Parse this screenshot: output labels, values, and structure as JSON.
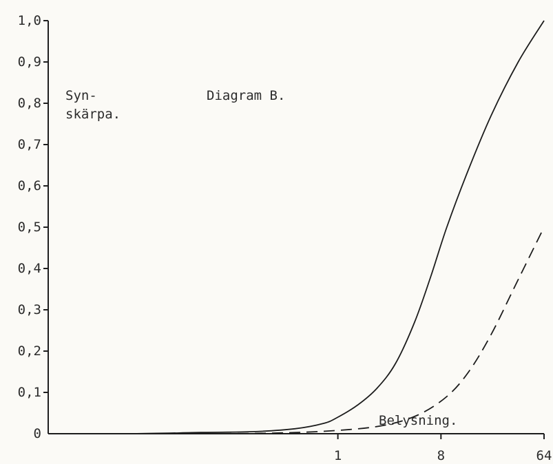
{
  "chart_data": {
    "type": "line",
    "title": "Diagram B.",
    "xlabel": "Belysning.",
    "ylabel": [
      "Syn-",
      "skärpa."
    ],
    "x_ticks": [
      {
        "value": 1,
        "label": "1"
      },
      {
        "value": 8,
        "label": "8"
      },
      {
        "value": 64,
        "label": "64"
      }
    ],
    "y_ticks": [
      {
        "value": 0,
        "label": "0"
      },
      {
        "value": 0.1,
        "label": "0,1"
      },
      {
        "value": 0.2,
        "label": "0,2"
      },
      {
        "value": 0.3,
        "label": "0,3"
      },
      {
        "value": 0.4,
        "label": "0,4"
      },
      {
        "value": 0.5,
        "label": "0,5"
      },
      {
        "value": 0.6,
        "label": "0,6"
      },
      {
        "value": 0.7,
        "label": "0,7"
      },
      {
        "value": 0.8,
        "label": "0,8"
      },
      {
        "value": 0.9,
        "label": "0,9"
      },
      {
        "value": 1.0,
        "label": "1,0"
      }
    ],
    "x_scale": "log",
    "xlim": [
      0.0029,
      64
    ],
    "ylim": [
      0,
      1.0
    ],
    "grid": false,
    "legend": "none",
    "series": [
      {
        "style": "solid",
        "x": [
          0.0029,
          0.016,
          0.063,
          0.18,
          0.42,
          0.75,
          1.0,
          1.5,
          2.2,
          3.2,
          4.7,
          6.5,
          9.0,
          13.5,
          22,
          38,
          64
        ],
        "y": [
          0.0,
          0.0,
          0.003,
          0.005,
          0.012,
          0.025,
          0.04,
          0.07,
          0.11,
          0.17,
          0.27,
          0.38,
          0.5,
          0.63,
          0.77,
          0.9,
          1.0
        ]
      },
      {
        "style": "dashed",
        "x": [
          0.0029,
          0.063,
          0.32,
          1.0,
          2.5,
          5.0,
          9.0,
          14,
          22,
          36,
          64
        ],
        "y": [
          0.0,
          0.0,
          0.002,
          0.008,
          0.02,
          0.045,
          0.09,
          0.15,
          0.24,
          0.36,
          0.5
        ]
      },
      {
        "style": "solid",
        "x": [
          0.0029,
          64
        ],
        "y": [
          0.0,
          0.0
        ]
      }
    ]
  }
}
